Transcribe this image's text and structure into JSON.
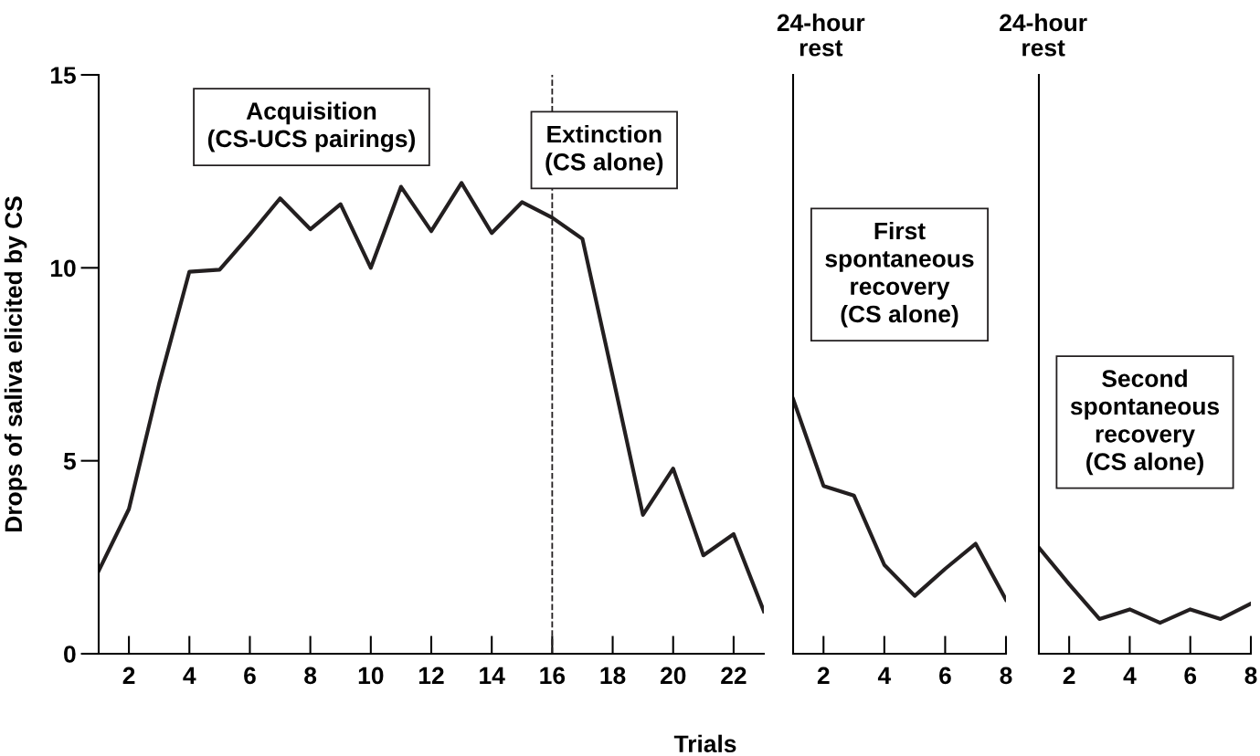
{
  "chart_data": [
    {
      "type": "line",
      "ylabel": "Drops of saliva elicited by CS",
      "xlabel": "Trials",
      "x": [
        1,
        2,
        3,
        4,
        5,
        6,
        7,
        8,
        9,
        10,
        11,
        12,
        13,
        14,
        15,
        16,
        17,
        18,
        19,
        20,
        21,
        22,
        23
      ],
      "series": [
        {
          "color": "#231f20",
          "values": [
            2.15,
            3.75,
            7.0,
            9.9,
            9.95,
            10.85,
            11.8,
            11.0,
            11.65,
            10.0,
            12.1,
            10.95,
            12.2,
            10.9,
            11.7,
            11.3,
            10.75,
            7.2,
            3.6,
            4.8,
            2.55,
            3.1,
            1.1
          ]
        }
      ],
      "xlim": [
        1,
        23
      ],
      "ylim": [
        0,
        15
      ],
      "xticks": [
        2,
        4,
        6,
        8,
        10,
        12,
        14,
        16,
        18,
        20,
        22
      ],
      "yticks": [
        0,
        5,
        10,
        15
      ],
      "grid": false,
      "legend": false,
      "line_style": "solid",
      "marker": "none",
      "ref_lines": [
        {
          "axis": "x",
          "value": 16,
          "line_style": "dashed",
          "color": "#231f20"
        }
      ],
      "annotations": [
        "Acquisition\n(CS-UCS pairings)",
        "Extinction\n(CS alone)"
      ]
    },
    {
      "type": "line",
      "x": [
        1,
        2,
        3,
        4,
        5,
        6,
        7,
        8
      ],
      "series": [
        {
          "color": "#231f20",
          "values": [
            6.6,
            4.35,
            4.1,
            2.3,
            1.5,
            2.2,
            2.85,
            1.4
          ]
        }
      ],
      "xlim": [
        1,
        8
      ],
      "ylim": [
        0,
        15
      ],
      "xticks": [
        2,
        4,
        6,
        8
      ],
      "tick_labels": "x",
      "grid": false,
      "legend": false,
      "line_style": "solid",
      "marker": "none",
      "annotations": [
        "24-hour\nrest",
        "First\nspontaneous\nrecovery\n(CS alone)"
      ]
    },
    {
      "type": "line",
      "x": [
        1,
        2,
        3,
        4,
        5,
        6,
        7,
        8
      ],
      "series": [
        {
          "color": "#231f20",
          "values": [
            2.75,
            1.8,
            0.9,
            1.15,
            0.8,
            1.15,
            0.9,
            1.3
          ]
        }
      ],
      "xlim": [
        1,
        8
      ],
      "ylim": [
        0,
        15
      ],
      "xticks": [
        2,
        4,
        6,
        8
      ],
      "tick_labels": "x",
      "grid": false,
      "legend": false,
      "line_style": "solid",
      "marker": "none",
      "annotations": [
        "24-hour\nrest",
        "Second\nspontaneous\nrecovery\n(CS alone)"
      ]
    }
  ]
}
